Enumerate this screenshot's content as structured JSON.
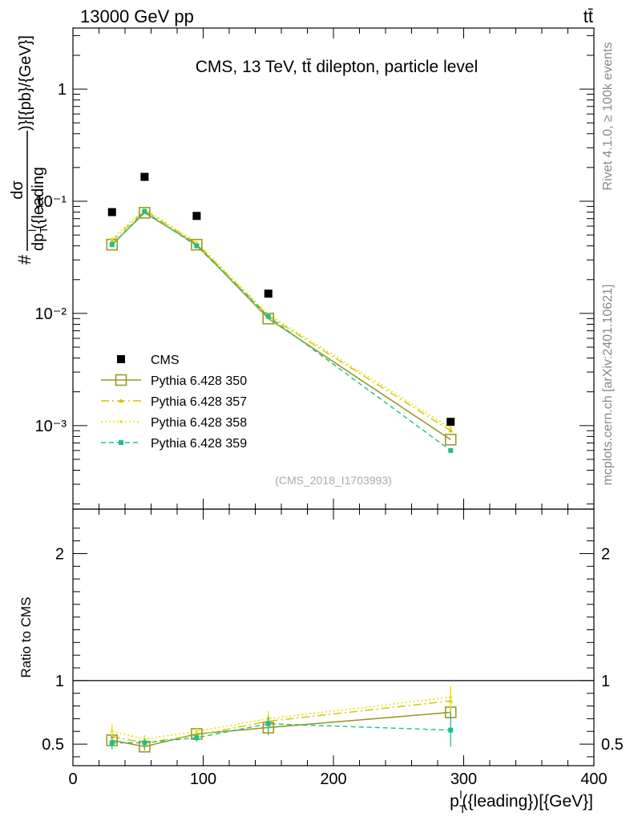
{
  "header": {
    "left": "13000 GeV pp",
    "right": "tt̄"
  },
  "side_labels": {
    "rivet": "Rivet 4.1.0, ≥ 100k events",
    "mcplots": "mcplots.cern.ch [arXiv:2401.10621]"
  },
  "colors": {
    "data": "#000000",
    "py350": "#9a9a2a",
    "py357": "#d4c000",
    "py358": "#e6e600",
    "py359": "#1ec08a"
  },
  "chart_data": [
    {
      "type": "scatter",
      "panel": "main",
      "title": "CMS, 13 TeV, tt̄ dilepton, particle level",
      "analysis_tag": "(CMS_2018_I1703993)",
      "xlabel": "p_T^l({leading})[{GeV}]",
      "ylabel": "dσ / dp_T^l({leading}) [{pb}/{GeV}]",
      "ylabel_parts": {
        "hash": "#",
        "num": "dσ",
        "den": "dp",
        "den_sub": "T",
        "den_sup": "l",
        "den_tail": "({leading",
        "suffix": ")}[{pb}/{GeV}]"
      },
      "xlim": [
        0,
        400
      ],
      "ylim": [
        0.00018,
        3.5
      ],
      "yscale": "log",
      "ytick_labels": [
        "10⁻³",
        "10⁻²",
        "10⁻¹",
        "1"
      ],
      "ytick_values": [
        0.001,
        0.01,
        0.1,
        1
      ],
      "x": [
        30,
        55,
        95,
        150,
        290
      ],
      "series": [
        {
          "name": "CMS",
          "style": "data",
          "values": [
            0.08,
            0.165,
            0.074,
            0.015,
            0.00108
          ]
        },
        {
          "name": "Pythia 6.428 350",
          "style": "py350",
          "values": [
            0.041,
            0.079,
            0.041,
            0.009,
            0.00075
          ]
        },
        {
          "name": "Pythia 6.428 357",
          "style": "py357",
          "values": [
            0.044,
            0.083,
            0.042,
            0.0095,
            0.0009
          ]
        },
        {
          "name": "Pythia 6.428 358",
          "style": "py358",
          "values": [
            0.046,
            0.085,
            0.043,
            0.0098,
            0.00095
          ]
        },
        {
          "name": "Pythia 6.428 359",
          "style": "py359",
          "values": [
            0.041,
            0.081,
            0.04,
            0.0094,
            0.0006
          ]
        }
      ],
      "legend": [
        "CMS",
        "Pythia 6.428 350",
        "Pythia 6.428 357",
        "Pythia 6.428 358",
        "Pythia 6.428 359"
      ],
      "legend_placement": "bottom-left"
    },
    {
      "type": "line",
      "panel": "ratio",
      "ylabel": "Ratio to CMS",
      "xlabel": "p_T^l({leading})[{GeV}]",
      "xlim": [
        0,
        400
      ],
      "ylim": [
        0.33,
        2.35
      ],
      "xtick_labels": [
        "0",
        "100",
        "200",
        "300",
        "400"
      ],
      "xtick_values": [
        0,
        100,
        200,
        300,
        400
      ],
      "ytick_labels": [
        "0.5",
        "1",
        "2"
      ],
      "ytick_values": [
        0.5,
        1,
        2
      ],
      "reference_line": 1,
      "x": [
        30,
        55,
        95,
        150,
        290
      ],
      "series": [
        {
          "name": "Pythia 6.428 350",
          "style": "py350",
          "values": [
            0.53,
            0.48,
            0.58,
            0.63,
            0.75
          ],
          "err": [
            0.05,
            0.03,
            0.03,
            0.06,
            0.07
          ]
        },
        {
          "name": "Pythia 6.428 357",
          "style": "py357",
          "values": [
            0.56,
            0.51,
            0.57,
            0.68,
            0.84
          ],
          "err": [
            0.06,
            0.03,
            0.03,
            0.06,
            0.09
          ]
        },
        {
          "name": "Pythia 6.428 358",
          "style": "py358",
          "values": [
            0.6,
            0.54,
            0.6,
            0.7,
            0.87
          ],
          "err": [
            0.06,
            0.03,
            0.03,
            0.06,
            0.09
          ]
        },
        {
          "name": "Pythia 6.428 359",
          "style": "py359",
          "values": [
            0.51,
            0.51,
            0.55,
            0.66,
            0.61
          ],
          "err": [
            0.05,
            0.03,
            0.03,
            0.06,
            0.13
          ]
        }
      ]
    }
  ]
}
